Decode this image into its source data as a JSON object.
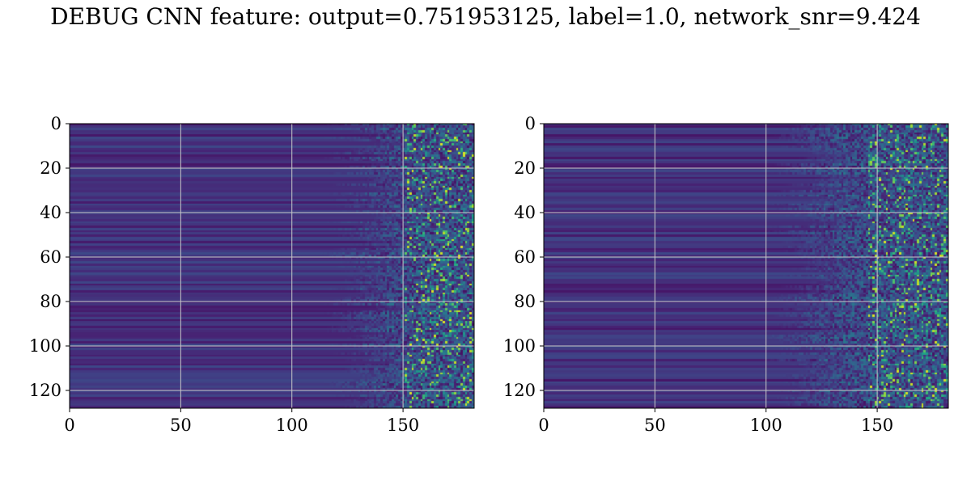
{
  "title": "DEBUG CNN feature: output=0.751953125, label=1.0, network_snr=9.424",
  "chart_data": [
    {
      "type": "heatmap",
      "colormap": "viridis",
      "rows": 128,
      "cols": 182,
      "xlim": [
        0,
        182
      ],
      "ylim": [
        128,
        0
      ],
      "xticks": [
        "0",
        "50",
        "100",
        "150"
      ],
      "yticks": [
        "0",
        "20",
        "40",
        "60",
        "80",
        "100",
        "120"
      ],
      "grid": true,
      "description_values": {
        "low_value_region_cols": [
          0,
          125
        ],
        "transition_cols": [
          125,
          150
        ],
        "high_activity_cols": [
          150,
          182
        ]
      }
    },
    {
      "type": "heatmap",
      "colormap": "viridis",
      "rows": 128,
      "cols": 182,
      "xlim": [
        0,
        182
      ],
      "ylim": [
        128,
        0
      ],
      "xticks": [
        "0",
        "50",
        "100",
        "150"
      ],
      "yticks": [
        "0",
        "20",
        "40",
        "60",
        "80",
        "100",
        "120"
      ],
      "grid": true,
      "description_values": {
        "low_value_region_cols": [
          0,
          110
        ],
        "transition_cols": [
          110,
          145
        ],
        "high_activity_cols": [
          145,
          182
        ]
      }
    }
  ]
}
